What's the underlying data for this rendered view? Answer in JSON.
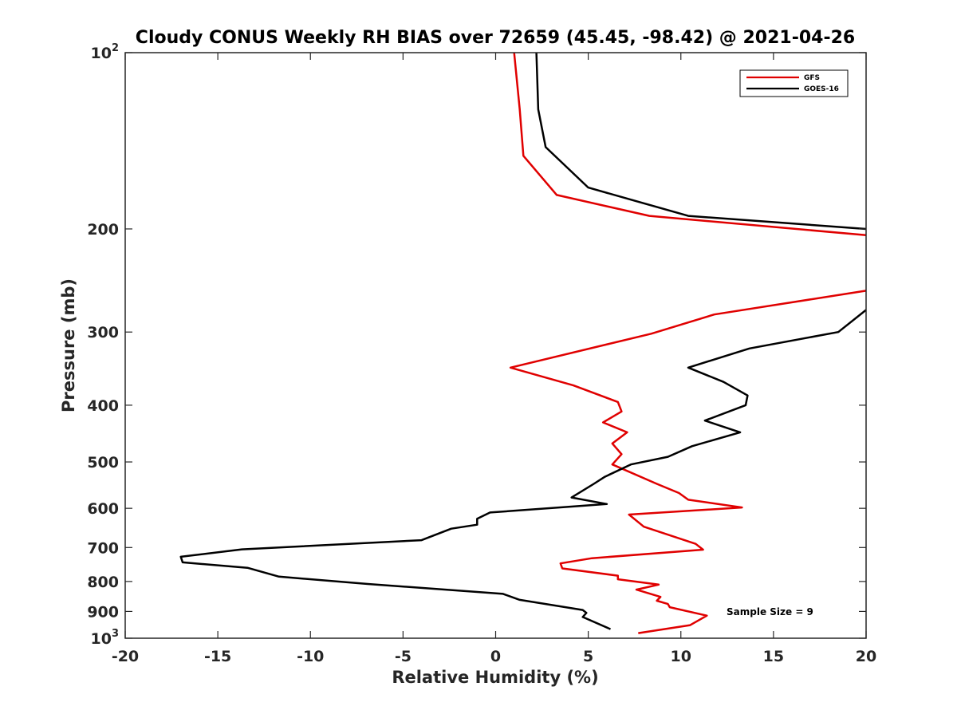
{
  "chart_data": {
    "type": "line",
    "title": "Cloudy CONUS Weekly RH BIAS over 72659 (45.45, -98.42) @ 2021-04-26",
    "xlabel": "Relative Humidity (%)",
    "ylabel": "Pressure (mb)",
    "xlim": [
      -20,
      20
    ],
    "ylim": [
      100,
      1000
    ],
    "y_scale": "log",
    "y_reversed": true,
    "x_ticks": [
      "-20",
      "-15",
      "-10",
      "-5",
      "0",
      "5",
      "10",
      "15",
      "20"
    ],
    "y_ticks": [
      {
        "value": 100,
        "base": "10",
        "exp": "2"
      },
      {
        "value": 200,
        "label": "200"
      },
      {
        "value": 300,
        "label": "300"
      },
      {
        "value": 400,
        "label": "400"
      },
      {
        "value": 500,
        "label": "500"
      },
      {
        "value": 600,
        "label": "600"
      },
      {
        "value": 700,
        "label": "700"
      },
      {
        "value": 800,
        "label": "800"
      },
      {
        "value": 900,
        "label": "900"
      },
      {
        "value": 1000,
        "base": "10",
        "exp": "3"
      }
    ],
    "legend_position": "top-right",
    "annotation": "Sample Size = 9",
    "series": [
      {
        "name": "GFS",
        "color": "#e00000",
        "segments": [
          [
            [
              1.0,
              100
            ],
            [
              1.3,
              125
            ],
            [
              1.5,
              150
            ],
            [
              3.3,
              175
            ],
            [
              8.3,
              190
            ],
            [
              20.0,
              205
            ]
          ],
          [
            [
              20.0,
              255
            ],
            [
              11.8,
              280
            ],
            [
              8.4,
              302
            ],
            [
              0.8,
              345
            ],
            [
              4.2,
              370
            ],
            [
              6.6,
              395
            ],
            [
              6.8,
              410
            ],
            [
              5.8,
              428
            ],
            [
              7.1,
              445
            ],
            [
              6.3,
              465
            ],
            [
              6.8,
              485
            ],
            [
              6.3,
              505
            ],
            [
              8.7,
              545
            ],
            [
              9.9,
              565
            ],
            [
              10.4,
              580
            ],
            [
              13.3,
              598
            ],
            [
              7.2,
              615
            ],
            [
              8.0,
              645
            ],
            [
              10.8,
              690
            ],
            [
              11.2,
              706
            ],
            [
              5.2,
              730
            ],
            [
              3.5,
              745
            ],
            [
              3.6,
              760
            ],
            [
              6.6,
              782
            ],
            [
              6.6,
              793
            ],
            [
              8.8,
              810
            ],
            [
              7.6,
              826
            ],
            [
              8.9,
              850
            ],
            [
              8.7,
              863
            ],
            [
              9.3,
              874
            ],
            [
              9.4,
              885
            ],
            [
              11.4,
              915
            ],
            [
              10.5,
              950
            ],
            [
              7.7,
              980
            ]
          ]
        ]
      },
      {
        "name": "GOES-16",
        "color": "#000000",
        "segments": [
          [
            [
              2.2,
              100
            ],
            [
              2.3,
              125
            ],
            [
              2.7,
              145
            ],
            [
              5.0,
              170
            ],
            [
              10.4,
              190
            ],
            [
              20.0,
              200
            ]
          ],
          [
            [
              20.0,
              275
            ],
            [
              18.5,
              300
            ],
            [
              13.7,
              320
            ],
            [
              10.4,
              345
            ],
            [
              12.3,
              365
            ],
            [
              13.6,
              385
            ],
            [
              13.5,
              400
            ],
            [
              11.3,
              425
            ],
            [
              13.2,
              445
            ],
            [
              10.6,
              470
            ],
            [
              9.3,
              490
            ],
            [
              7.3,
              505
            ],
            [
              5.9,
              530
            ],
            [
              5.3,
              545
            ],
            [
              4.1,
              575
            ],
            [
              6.0,
              590
            ],
            [
              -0.3,
              610
            ],
            [
              -1.0,
              625
            ],
            [
              -1.0,
              640
            ],
            [
              -2.4,
              650
            ],
            [
              -4.0,
              680
            ],
            [
              -13.7,
              705
            ],
            [
              -17.0,
              726
            ],
            [
              -16.9,
              742
            ],
            [
              -13.4,
              758
            ],
            [
              -11.7,
              785
            ],
            [
              -6.9,
              808
            ],
            [
              0.4,
              840
            ],
            [
              1.3,
              860
            ],
            [
              4.7,
              895
            ],
            [
              4.9,
              905
            ],
            [
              4.7,
              920
            ],
            [
              6.2,
              965
            ]
          ]
        ]
      }
    ]
  }
}
